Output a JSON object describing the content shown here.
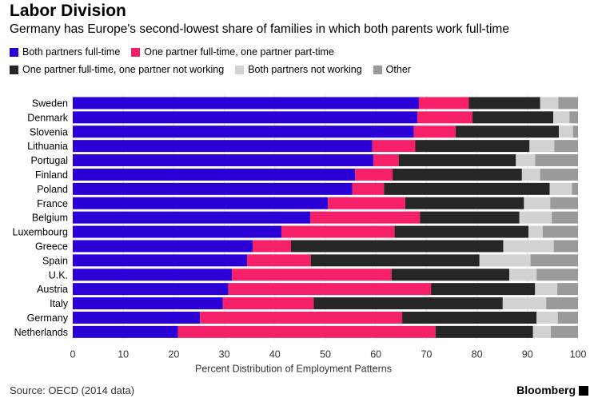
{
  "title": "Labor Division",
  "subtitle": "Germany has Europe's second-lowest share of families in which both parents work full-time",
  "source": "Source: OECD (2014 data)",
  "brand": "Bloomberg",
  "legend": [
    {
      "label": "Both partners full-time",
      "color": "#2a00d6"
    },
    {
      "label": "One partner full-time, one partner part-time",
      "color": "#f51f6a"
    },
    {
      "label": "One partner full-time, one partner not working",
      "color": "#262626"
    },
    {
      "label": "Both partners not working",
      "color": "#d2d2d2"
    },
    {
      "label": "Other",
      "color": "#9a9a9a"
    }
  ],
  "chart_data": {
    "type": "bar",
    "orientation": "horizontal",
    "stacked": true,
    "xlabel": "Percent Distribution of Employment Patterns",
    "ylabel": "",
    "xlim": [
      0,
      100
    ],
    "xticks": [
      0,
      10,
      20,
      30,
      40,
      50,
      60,
      70,
      80,
      90,
      100
    ],
    "categories": [
      "Sweden",
      "Denmark",
      "Slovenia",
      "Lithuania",
      "Portugal",
      "Finland",
      "Poland",
      "France",
      "Belgium",
      "Luxembourg",
      "Greece",
      "Spain",
      "U.K.",
      "Austria",
      "Italy",
      "Germany",
      "Netherlands"
    ],
    "series": [
      {
        "name": "Both partners full-time",
        "color": "#2a00d6",
        "values": [
          68.5,
          68.2,
          67.5,
          59.3,
          59.5,
          55.9,
          55.3,
          50.5,
          47.0,
          41.3,
          35.6,
          34.5,
          31.5,
          30.8,
          29.7,
          25.2,
          20.8
        ]
      },
      {
        "name": "One partner full-time, one partner part-time",
        "color": "#f51f6a",
        "values": [
          9.9,
          10.9,
          8.3,
          8.5,
          5.0,
          7.4,
          6.3,
          15.3,
          21.7,
          22.4,
          7.6,
          12.6,
          31.6,
          40.1,
          18.0,
          40.0,
          51.0
        ]
      },
      {
        "name": "One partner full-time, one partner not working",
        "color": "#262626",
        "values": [
          14.1,
          16.0,
          20.4,
          22.6,
          23.2,
          25.6,
          32.8,
          23.5,
          19.7,
          26.5,
          42.0,
          33.4,
          23.3,
          20.6,
          37.4,
          26.6,
          19.3
        ]
      },
      {
        "name": "Both partners not working",
        "color": "#d2d2d2",
        "values": [
          3.6,
          3.2,
          2.8,
          4.9,
          3.8,
          3.6,
          4.4,
          5.2,
          6.4,
          2.8,
          10.0,
          10.1,
          5.4,
          4.4,
          8.6,
          4.2,
          3.5
        ]
      },
      {
        "name": "Other",
        "color": "#9a9a9a",
        "values": [
          3.9,
          1.7,
          1.0,
          4.7,
          8.5,
          7.5,
          1.2,
          5.5,
          5.2,
          7.0,
          4.8,
          9.4,
          8.2,
          4.1,
          6.3,
          4.0,
          5.4
        ]
      }
    ]
  }
}
